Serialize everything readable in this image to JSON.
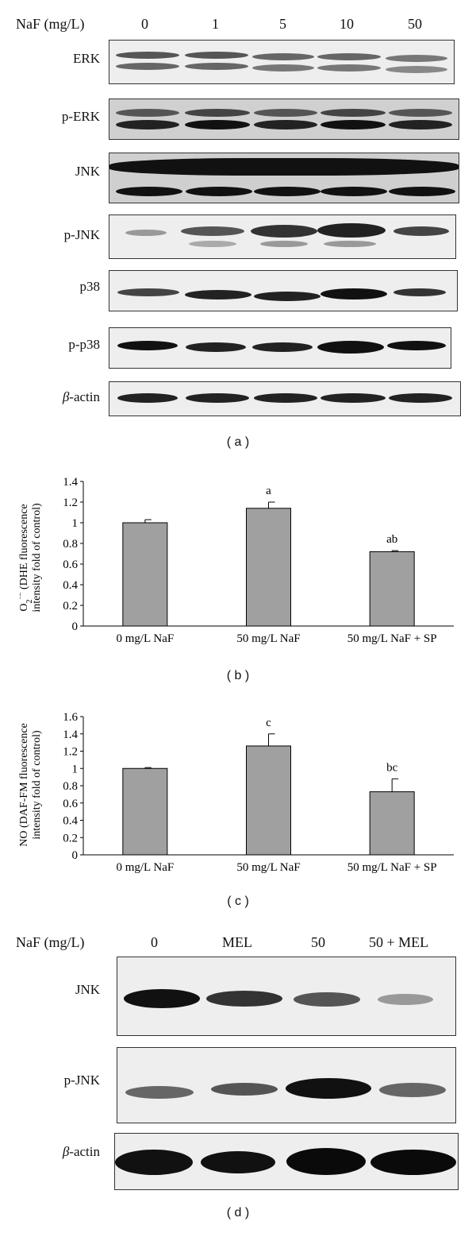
{
  "panel_a": {
    "panel_label": "( a )",
    "header_label": "NaF (mg/L)",
    "doses": [
      "0",
      "1",
      "5",
      "10",
      "50"
    ],
    "rows": [
      {
        "label": "ERK"
      },
      {
        "label": "p-ERK"
      },
      {
        "label": "JNK"
      },
      {
        "label": "p-JNK"
      },
      {
        "label": "p38"
      },
      {
        "label": "p-p38"
      },
      {
        "label_greek": "β",
        "label_rest": "-actin"
      }
    ]
  },
  "panel_d": {
    "panel_label": "( d )",
    "header_label": "NaF (mg/L)",
    "doses": [
      "0",
      "MEL",
      "50",
      "50 + MEL"
    ],
    "rows": [
      {
        "label": "JNK"
      },
      {
        "label": "p-JNK"
      },
      {
        "label_greek": "β",
        "label_rest": "-actin"
      }
    ]
  },
  "chart_data": [
    {
      "type": "bar",
      "panel_label": "( b )",
      "categories": [
        "0 mg/L NaF",
        "50 mg/L NaF",
        "50 mg/L NaF + SP"
      ],
      "values": [
        1.0,
        1.14,
        0.72
      ],
      "errors": [
        0.03,
        0.06,
        0.01
      ],
      "annotations": [
        "",
        "a",
        "ab"
      ],
      "ylabel_prefix": "O",
      "ylabel_sub": "2",
      "ylabel_sup": "·−",
      "ylabel_rest": " (DHE fluorescence",
      "ylabel_line2": "intensity fold of control)",
      "ylim": [
        0,
        1.4
      ],
      "yticks": [
        "0",
        "0.2",
        "0.4",
        "0.6",
        "0.8",
        "1",
        "1.2",
        "1.4"
      ],
      "bar_color": "#a0a0a0"
    },
    {
      "type": "bar",
      "panel_label": "( c )",
      "categories": [
        "0 mg/L NaF",
        "50 mg/L NaF",
        "50 mg/L NaF + SP"
      ],
      "values": [
        1.0,
        1.26,
        0.73
      ],
      "errors": [
        0.01,
        0.14,
        0.15
      ],
      "annotations": [
        "",
        "c",
        "bc"
      ],
      "ylabel_line1": "NO (DAF-FM fluorescence",
      "ylabel_line2": "intensity fold of control)",
      "ylim": [
        0,
        1.6
      ],
      "yticks": [
        "0",
        "0.2",
        "0.4",
        "0.6",
        "0.8",
        "1",
        "1.2",
        "1.4",
        "1.6"
      ],
      "bar_color": "#a0a0a0"
    }
  ]
}
